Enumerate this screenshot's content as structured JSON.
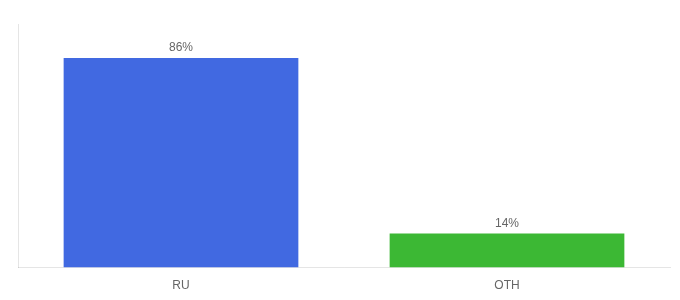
{
  "chart_data": {
    "type": "bar",
    "categories": [
      "RU",
      "OTH"
    ],
    "values": [
      86,
      14
    ],
    "value_labels": [
      "86%",
      "14%"
    ],
    "colors": [
      "#4169e1",
      "#3cb834"
    ],
    "ylim": [
      0,
      100
    ],
    "grid": false,
    "data_labels": true,
    "tick_labels": "x"
  }
}
